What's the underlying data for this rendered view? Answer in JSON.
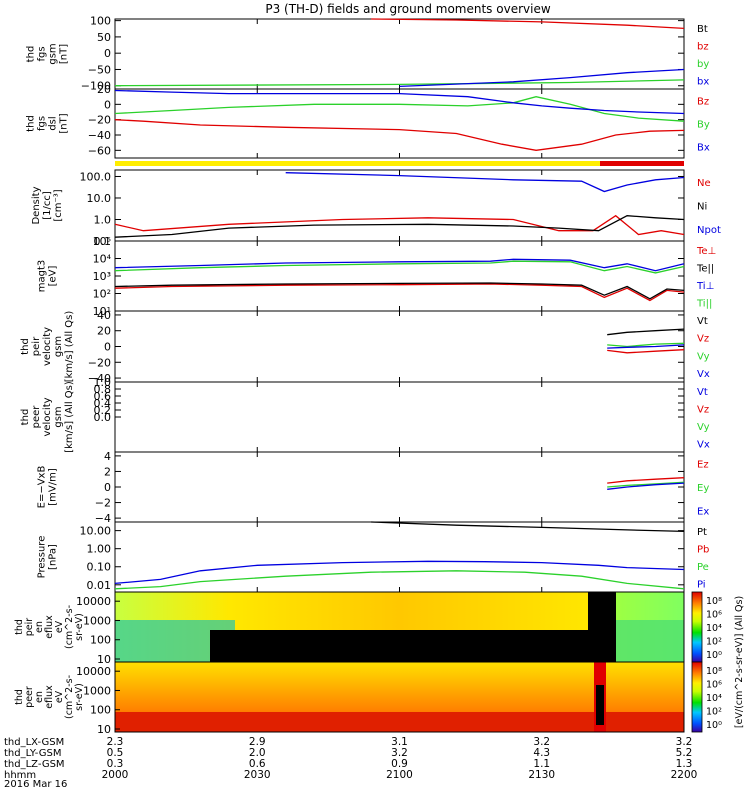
{
  "title": "P3 (TH-D) fields and ground moments overview",
  "colors": {
    "black": "#000000",
    "red": "#e00000",
    "green": "#2bd12b",
    "blue": "#0000e0",
    "yellow": "#ffee00",
    "dark_green": "#18b018"
  },
  "footer": {
    "row_labels": [
      "thd_LX-GSM",
      "thd_LY-GSM",
      "thd_LZ-GSM",
      "hhmm"
    ],
    "date_label": "2016 Mar 16"
  },
  "colorbar": {
    "label": "[eV/(cm^2-s-sr-eV)] (All Qs)",
    "tick_labels": [
      "10⁸",
      "10⁶",
      "10⁴",
      "10²",
      "10⁰"
    ]
  },
  "chart_data": {
    "type": "line",
    "x_axis": {
      "tick_labels": [
        "2000",
        "2030",
        "2100",
        "2130",
        "2200"
      ],
      "LX": [
        "2.3",
        "2.9",
        "3.1",
        "3.2",
        "3.2"
      ],
      "LY": [
        "0.5",
        "2.0",
        "3.2",
        "4.3",
        "5.2"
      ],
      "LZ": [
        "0.3",
        "0.6",
        "0.9",
        "1.1",
        "1.3"
      ]
    },
    "panels": [
      {
        "id": "fgs_gsm",
        "ylabel": [
          "thd",
          "fgs",
          "gsm",
          "[nT]"
        ],
        "ylim": [
          -110,
          105
        ],
        "yticks": [
          100,
          50,
          0,
          -50,
          -100
        ],
        "ytick_labels": [
          "100",
          "50",
          "0",
          "−50",
          "−100"
        ],
        "legend": [
          {
            "name": "Bt",
            "color": "black"
          },
          {
            "name": "bz",
            "color": "red"
          },
          {
            "name": "by",
            "color": "green"
          },
          {
            "name": "bx",
            "color": "blue"
          }
        ],
        "series": [
          {
            "name": "bz",
            "color": "red",
            "x": [
              0.45,
              0.6,
              0.75,
              0.9,
              1.0
            ],
            "y": [
              105,
              102,
              96,
              86,
              76
            ]
          },
          {
            "name": "by",
            "color": "green",
            "x": [
              0,
              0.5,
              0.8,
              1.0
            ],
            "y": [
              -100,
              -96,
              -90,
              -82
            ]
          },
          {
            "name": "bx",
            "color": "blue",
            "x": [
              0.5,
              0.7,
              0.8,
              0.9,
              1.0
            ],
            "y": [
              -102,
              -88,
              -75,
              -60,
              -50
            ]
          }
        ]
      },
      {
        "id": "fgs_dsl",
        "ylabel": [
          "thd",
          "fgs",
          "dsl",
          "[nT]"
        ],
        "ylim": [
          -70,
          20
        ],
        "yticks": [
          20,
          0,
          -20,
          -40,
          -60
        ],
        "ytick_labels": [
          "20",
          "0",
          "−20",
          "−40",
          "−60"
        ],
        "legend": [
          {
            "name": "Bz",
            "color": "red"
          },
          {
            "name": "By",
            "color": "green"
          },
          {
            "name": "Bx",
            "color": "blue"
          }
        ],
        "series": [
          {
            "name": "Bz",
            "color": "red",
            "x": [
              0,
              0.05,
              0.15,
              0.3,
              0.5,
              0.6,
              0.68,
              0.74,
              0.82,
              0.88,
              0.94,
              1.0
            ],
            "y": [
              -20,
              -22,
              -27,
              -30,
              -33,
              -38,
              -52,
              -60,
              -52,
              -40,
              -35,
              -34
            ]
          },
          {
            "name": "By",
            "color": "green",
            "x": [
              0,
              0.1,
              0.2,
              0.35,
              0.5,
              0.62,
              0.7,
              0.74,
              0.8,
              0.86,
              0.92,
              1.0
            ],
            "y": [
              -12,
              -8,
              -4,
              0,
              0,
              -2,
              2,
              10,
              0,
              -12,
              -18,
              -22
            ]
          },
          {
            "name": "Bx",
            "color": "blue",
            "x": [
              0,
              0.1,
              0.2,
              0.35,
              0.5,
              0.62,
              0.7,
              0.75,
              0.8,
              0.86,
              0.92,
              1.0
            ],
            "y": [
              18,
              16,
              14,
              14,
              14,
              10,
              2,
              -2,
              -5,
              -8,
              -10,
              -12
            ]
          }
        ]
      },
      {
        "id": "density",
        "ylabel": [
          "Density",
          "[1/cc]",
          "[cm⁻³]"
        ],
        "yscale": "log",
        "ylim": [
          0.1,
          200
        ],
        "yticks": [
          100,
          10,
          1,
          0.1
        ],
        "ytick_labels": [
          "100.0",
          "10.0",
          "1.0",
          "0.1"
        ],
        "legend": [
          {
            "name": "Ne",
            "color": "red"
          },
          {
            "name": "Ni",
            "color": "black"
          },
          {
            "name": "Npot",
            "color": "blue"
          }
        ],
        "series": [
          {
            "name": "Npot",
            "color": "blue",
            "x": [
              0.3,
              0.5,
              0.7,
              0.82,
              0.86,
              0.9,
              0.95,
              1.0
            ],
            "y": [
              150,
              110,
              70,
              60,
              20,
              40,
              70,
              90
            ]
          },
          {
            "name": "Ne",
            "color": "red",
            "x": [
              0,
              0.05,
              0.2,
              0.4,
              0.55,
              0.7,
              0.78,
              0.84,
              0.88,
              0.92,
              0.96,
              1.0
            ],
            "y": [
              0.6,
              0.3,
              0.6,
              1.0,
              1.2,
              1.0,
              0.3,
              0.3,
              1.5,
              0.2,
              0.3,
              0.2
            ]
          },
          {
            "name": "Ni",
            "color": "black",
            "x": [
              0,
              0.1,
              0.2,
              0.35,
              0.55,
              0.7,
              0.78,
              0.85,
              0.9,
              0.95,
              1.0
            ],
            "y": [
              0.15,
              0.2,
              0.4,
              0.55,
              0.6,
              0.5,
              0.4,
              0.3,
              1.5,
              1.2,
              1.0
            ]
          }
        ]
      },
      {
        "id": "temperature",
        "ylabel": [
          "magt3",
          "[eV]"
        ],
        "yscale": "log",
        "ylim": [
          10,
          100000
        ],
        "yticks": [
          100000,
          10000,
          1000,
          100,
          10
        ],
        "ytick_labels": [
          "10⁵",
          "10⁴",
          "10³",
          "10²",
          "10¹"
        ],
        "legend": [
          {
            "name": "Te⊥",
            "color": "red"
          },
          {
            "name": "Te||",
            "color": "black"
          },
          {
            "name": "Ti⊥",
            "color": "blue"
          },
          {
            "name": "Ti||",
            "color": "green"
          }
        ],
        "series": [
          {
            "name": "Ti⊥",
            "color": "blue",
            "x": [
              0,
              0.15,
              0.3,
              0.5,
              0.66,
              0.7,
              0.8,
              0.86,
              0.9,
              0.95,
              1.0
            ],
            "y": [
              3000,
              4000,
              5500,
              6500,
              7000,
              9000,
              8000,
              3000,
              5000,
              2000,
              5000
            ]
          },
          {
            "name": "Ti||",
            "color": "green",
            "x": [
              0,
              0.15,
              0.3,
              0.5,
              0.66,
              0.7,
              0.8,
              0.86,
              0.9,
              0.95,
              1.0
            ],
            "y": [
              2000,
              3000,
              4000,
              5000,
              5500,
              7000,
              6500,
              2000,
              3500,
              1500,
              3500
            ]
          },
          {
            "name": "Te⊥",
            "color": "red",
            "x": [
              0,
              0.1,
              0.3,
              0.5,
              0.66,
              0.75,
              0.82,
              0.86,
              0.9,
              0.94,
              0.97,
              1.0
            ],
            "y": [
              200,
              250,
              300,
              320,
              350,
              300,
              250,
              60,
              200,
              40,
              150,
              120
            ]
          },
          {
            "name": "Te||",
            "color": "black",
            "x": [
              0,
              0.1,
              0.3,
              0.5,
              0.66,
              0.75,
              0.82,
              0.86,
              0.9,
              0.94,
              0.97,
              1.0
            ],
            "y": [
              250,
              300,
              350,
              380,
              400,
              350,
              300,
              80,
              250,
              50,
              180,
              150
            ]
          }
        ]
      },
      {
        "id": "peir_velocity",
        "ylabel": [
          "thd",
          "peir",
          "velocity",
          "gsm",
          "[km/s] (All Qs)"
        ],
        "ylim": [
          -45,
          45
        ],
        "yticks": [
          40,
          20,
          0,
          -20,
          -40
        ],
        "ytick_labels": [
          "40",
          "20",
          "0",
          "−20",
          "−40"
        ],
        "legend": [
          {
            "name": "Vt",
            "color": "black"
          },
          {
            "name": "Vz",
            "color": "red"
          },
          {
            "name": "Vy",
            "color": "green"
          },
          {
            "name": "Vx",
            "color": "blue"
          }
        ],
        "series": [
          {
            "name": "Vt",
            "color": "black",
            "x": [
              0.865,
              0.9,
              0.95,
              1.0
            ],
            "y": [
              15,
              18,
              20,
              22
            ]
          },
          {
            "name": "Vy",
            "color": "green",
            "x": [
              0.865,
              0.9,
              0.95,
              1.0
            ],
            "y": [
              2,
              0,
              3,
              4
            ]
          },
          {
            "name": "Vx",
            "color": "blue",
            "x": [
              0.865,
              0.9,
              0.95,
              1.0
            ],
            "y": [
              -2,
              -1,
              0,
              2
            ]
          },
          {
            "name": "Vz",
            "color": "red",
            "x": [
              0.865,
              0.9,
              0.95,
              1.0
            ],
            "y": [
              -5,
              -8,
              -6,
              -4
            ]
          }
        ]
      },
      {
        "id": "peer_velocity",
        "ylabel": [
          "thd",
          "peer",
          "velocity",
          "gsm",
          "[km/s] (All Qs)"
        ],
        "ylim": [
          -1,
          1
        ],
        "yticks": [
          1.0,
          0.8,
          0.6,
          0.4,
          0.2,
          0.0
        ],
        "ytick_labels": [
          "1.0",
          "0.8",
          "0.6",
          "0.4",
          "0.2",
          "0.0"
        ],
        "legend": [
          {
            "name": "Vt",
            "color": "blue"
          },
          {
            "name": "Vz",
            "color": "red"
          },
          {
            "name": "Vy",
            "color": "green"
          },
          {
            "name": "Vx",
            "color": "blue"
          }
        ],
        "series": []
      },
      {
        "id": "efield",
        "ylabel": [
          "E=−VxB",
          "[mV/m]"
        ],
        "ylim": [
          -4.5,
          4.5
        ],
        "yticks": [
          4,
          2,
          0,
          -2,
          -4
        ],
        "ytick_labels": [
          "4",
          "2",
          "0",
          "−2",
          "−4"
        ],
        "legend": [
          {
            "name": "Ez",
            "color": "red"
          },
          {
            "name": "Ey",
            "color": "green"
          },
          {
            "name": "Ex",
            "color": "blue"
          }
        ],
        "series": [
          {
            "name": "Ez",
            "color": "red",
            "x": [
              0.865,
              0.9,
              0.95,
              1.0
            ],
            "y": [
              0.5,
              0.8,
              1.0,
              1.2
            ]
          },
          {
            "name": "Ey",
            "color": "green",
            "x": [
              0.865,
              0.9,
              0.95,
              1.0
            ],
            "y": [
              0,
              0.2,
              0.4,
              0.6
            ]
          },
          {
            "name": "Ex",
            "color": "blue",
            "x": [
              0.865,
              0.9,
              0.95,
              1.0
            ],
            "y": [
              -0.3,
              0,
              0.3,
              0.5
            ]
          }
        ]
      },
      {
        "id": "pressure",
        "ylabel": [
          "Pressure",
          "[nPa]"
        ],
        "yscale": "log",
        "ylim": [
          0.004,
          30
        ],
        "yticks": [
          10,
          1,
          0.1,
          0.01
        ],
        "ytick_labels": [
          "10.00",
          "1.00",
          "0.10",
          "0.01"
        ],
        "legend": [
          {
            "name": "Pt",
            "color": "black"
          },
          {
            "name": "Pb",
            "color": "red"
          },
          {
            "name": "Pe",
            "color": "green"
          },
          {
            "name": "Pi",
            "color": "blue"
          }
        ],
        "series": [
          {
            "name": "Pt",
            "color": "black",
            "x": [
              0.45,
              0.6,
              0.75,
              0.9,
              1.0
            ],
            "y": [
              30,
              20,
              15,
              11,
              9
            ]
          },
          {
            "name": "Pi",
            "color": "blue",
            "x": [
              0,
              0.08,
              0.15,
              0.25,
              0.4,
              0.55,
              0.65,
              0.75,
              0.85,
              0.9,
              1.0
            ],
            "y": [
              0.012,
              0.02,
              0.06,
              0.12,
              0.17,
              0.2,
              0.19,
              0.17,
              0.12,
              0.09,
              0.07
            ]
          },
          {
            "name": "Pe",
            "color": "green",
            "x": [
              0,
              0.08,
              0.15,
              0.3,
              0.45,
              0.6,
              0.72,
              0.82,
              0.9,
              1.0
            ],
            "y": [
              0.006,
              0.008,
              0.015,
              0.03,
              0.05,
              0.06,
              0.05,
              0.03,
              0.012,
              0.006
            ]
          }
        ]
      }
    ],
    "spectrograms": [
      {
        "id": "peir_en_eflux",
        "ylabel": [
          "thd",
          "peir",
          "en",
          "eflux",
          "eV",
          "(cm^2-s-",
          "sr-eV)"
        ],
        "yscale": "log",
        "ylim": [
          7,
          30000
        ],
        "yticks": [
          10000,
          1000,
          100,
          10
        ],
        "ytick_labels": [
          "10000",
          "1000",
          "100",
          "10"
        ]
      },
      {
        "id": "peer_en_eflux",
        "ylabel": [
          "thd",
          "peer",
          "en",
          "eflux",
          "eV",
          "(cm^2-s-",
          "sr-eV)"
        ],
        "yscale": "log",
        "ylim": [
          7,
          30000
        ],
        "yticks": [
          10000,
          1000,
          100,
          10
        ],
        "ytick_labels": [
          "10000",
          "1000",
          "100",
          "10"
        ]
      }
    ]
  }
}
